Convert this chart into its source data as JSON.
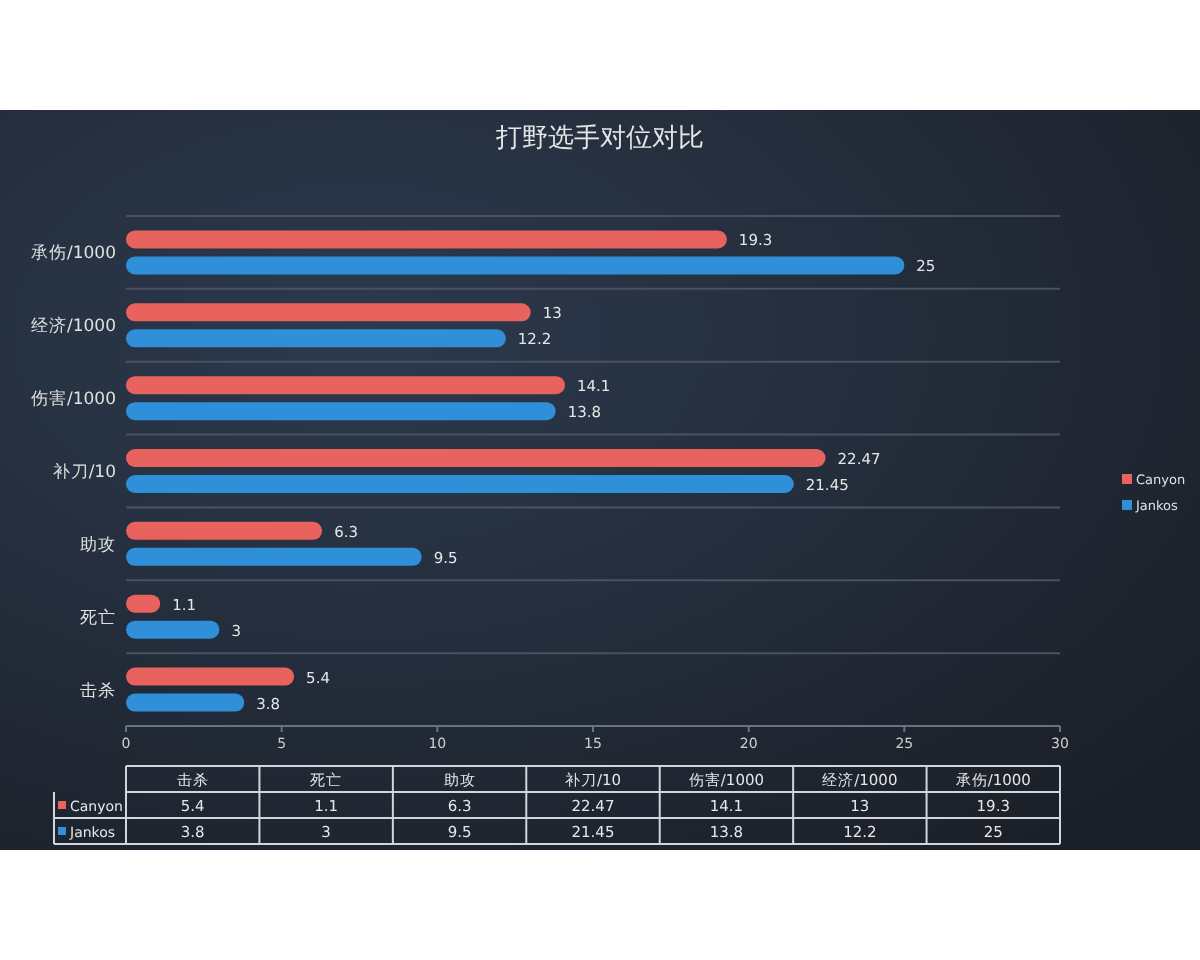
{
  "chart_data": [
    {
      "type": "bar",
      "orientation": "horizontal",
      "title": "打野选手对位对比",
      "categories": [
        "承伤/1000",
        "经济/1000",
        "伤害/1000",
        "补刀/10",
        "助攻",
        "死亡",
        "击杀"
      ],
      "series": [
        {
          "name": "Canyon",
          "color": "#e8625e",
          "values": [
            19.3,
            13,
            14.1,
            22.47,
            6.3,
            1.1,
            5.4
          ]
        },
        {
          "name": "Jankos",
          "color": "#2f8fd8",
          "values": [
            25,
            12.2,
            13.8,
            21.45,
            9.5,
            3,
            3.8
          ]
        }
      ],
      "xlim": [
        0,
        30
      ],
      "xticks": [
        0,
        5,
        10,
        15,
        20,
        25,
        30
      ],
      "grid": "y",
      "legend": "right",
      "data_labels": true
    },
    {
      "type": "other",
      "categories": [
        "击杀",
        "死亡",
        "助攻",
        "补刀/10",
        "伤害/1000",
        "经济/1000",
        "承伤/1000"
      ],
      "series": [
        {
          "name": "Canyon",
          "color": "#e8625e",
          "values": [
            5.4,
            1.1,
            6.3,
            22.47,
            14.1,
            13,
            19.3
          ]
        },
        {
          "name": "Jankos",
          "color": "#2f8fd8",
          "values": [
            3.8,
            3,
            9.5,
            21.45,
            13.8,
            12.2,
            25
          ]
        }
      ],
      "legend": "left",
      "data_labels": true
    }
  ]
}
